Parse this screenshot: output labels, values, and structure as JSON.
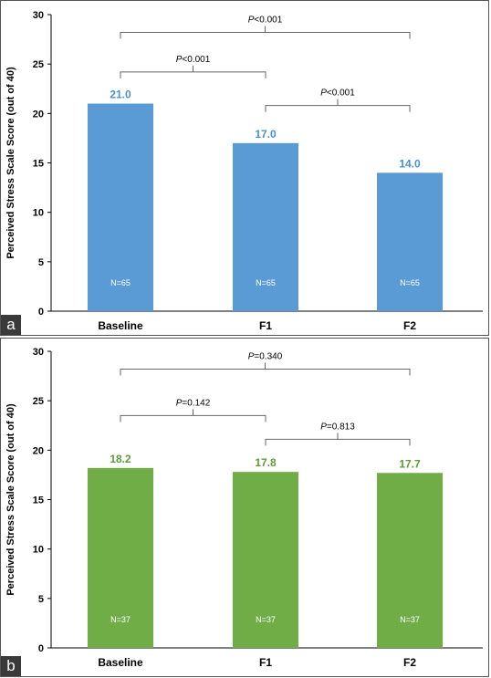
{
  "chart_data": [
    {
      "panel": "a",
      "type": "bar",
      "ylabel": "Perceived Stress Scale Score (out of 40)",
      "ylim": [
        0,
        30
      ],
      "yticks": [
        0,
        5,
        10,
        15,
        20,
        25,
        30
      ],
      "categories": [
        "Baseline",
        "F1",
        "F2"
      ],
      "values": [
        21.0,
        17.0,
        14.0
      ],
      "value_labels": [
        "21.0",
        "17.0",
        "14.0"
      ],
      "n_labels": [
        "N=65",
        "N=65",
        "N=65"
      ],
      "color": "#5b9bd5",
      "label_color": "#4a90d0",
      "comparisons": [
        {
          "from": 0,
          "to": 2,
          "p_prefix": "P",
          "p_value": "<0.001",
          "level": 28.2
        },
        {
          "from": 0,
          "to": 1,
          "p_prefix": "P",
          "p_value": "<0.001",
          "level": 24.2
        },
        {
          "from": 1,
          "to": 2,
          "p_prefix": "P",
          "p_value": "<0.001",
          "level": 20.8
        }
      ]
    },
    {
      "panel": "b",
      "type": "bar",
      "ylabel": "Perceived Stress Scale Score (out of 40)",
      "ylim": [
        0,
        30
      ],
      "yticks": [
        0,
        5,
        10,
        15,
        20,
        25,
        30
      ],
      "categories": [
        "Baseline",
        "F1",
        "F2"
      ],
      "values": [
        18.2,
        17.8,
        17.7
      ],
      "value_labels": [
        "18.2",
        "17.8",
        "17.7"
      ],
      "n_labels": [
        "N=37",
        "N=37",
        "N=37"
      ],
      "color": "#70ad47",
      "label_color": "#5e9a38",
      "comparisons": [
        {
          "from": 0,
          "to": 2,
          "p_prefix": "P",
          "p_value": "=0.340",
          "level": 28.2
        },
        {
          "from": 0,
          "to": 1,
          "p_prefix": "P",
          "p_value": "=0.142",
          "level": 23.5
        },
        {
          "from": 1,
          "to": 2,
          "p_prefix": "P",
          "p_value": "=0.813",
          "level": 21.1
        }
      ]
    }
  ],
  "panel_letters": [
    "a",
    "b"
  ]
}
